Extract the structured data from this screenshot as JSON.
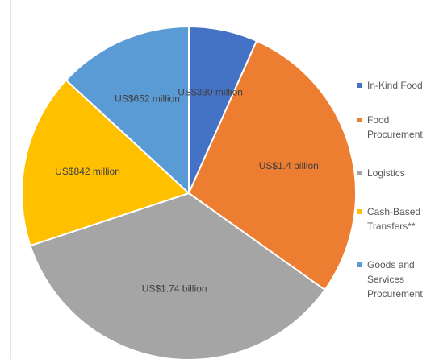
{
  "chart_data": {
    "type": "pie",
    "title": "",
    "unit_note": "",
    "slices": [
      {
        "name": "In-Kind Food",
        "value": 330,
        "label": "US$330 million",
        "color": "#4472C4"
      },
      {
        "name": "Food Procurement",
        "value": 1400,
        "label": "US$1.4 billion",
        "color": "#ED7D31"
      },
      {
        "name": "Logistics",
        "value": 1740,
        "label": "US$1.74 billion",
        "color": "#A5A5A5"
      },
      {
        "name": "Cash-Based Transfers**",
        "value": 842,
        "label": "US$842 million",
        "color": "#FFC000"
      },
      {
        "name": "Goods and Services Procurement",
        "value": 652,
        "label": "US$652 million",
        "color": "#5B9BD5"
      }
    ],
    "legend_position": "right",
    "start_angle": "12 o'clock",
    "direction": "clockwise"
  },
  "legend": {
    "items": [
      {
        "lines": [
          "In-Kind Food"
        ],
        "color": "#4472C4"
      },
      {
        "lines": [
          "Food",
          "Procurement"
        ],
        "color": "#ED7D31"
      },
      {
        "lines": [
          "Logistics"
        ],
        "color": "#A5A5A5"
      },
      {
        "lines": [
          "Cash-Based",
          "Transfers**"
        ],
        "color": "#FFC000"
      },
      {
        "lines": [
          "Goods and",
          "Services",
          "Procurement"
        ],
        "color": "#5B9BD5"
      }
    ]
  }
}
